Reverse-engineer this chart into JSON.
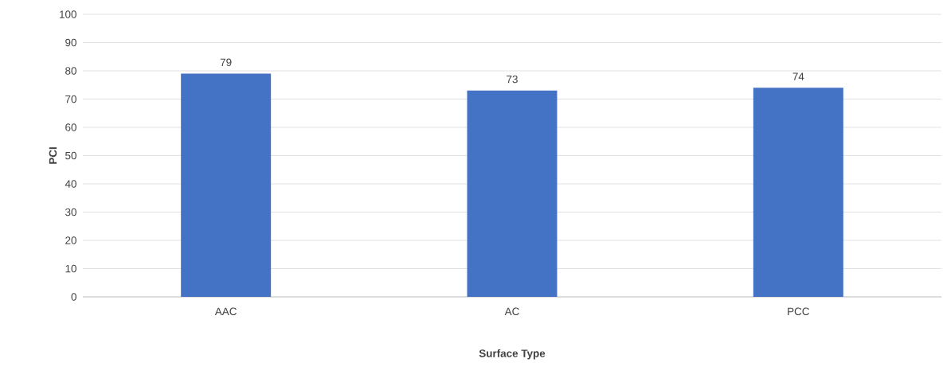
{
  "chart_data": {
    "type": "bar",
    "xlabel": "Surface Type",
    "ylabel": "PCI",
    "categories": [
      "AAC",
      "AC",
      "PCC"
    ],
    "values": [
      79,
      73,
      74
    ],
    "color": "#4472c4",
    "ylim": [
      0,
      100
    ],
    "yticks": [
      0,
      10,
      20,
      30,
      40,
      50,
      60,
      70,
      80,
      90,
      100
    ],
    "grid": "y",
    "data_labels": true
  }
}
